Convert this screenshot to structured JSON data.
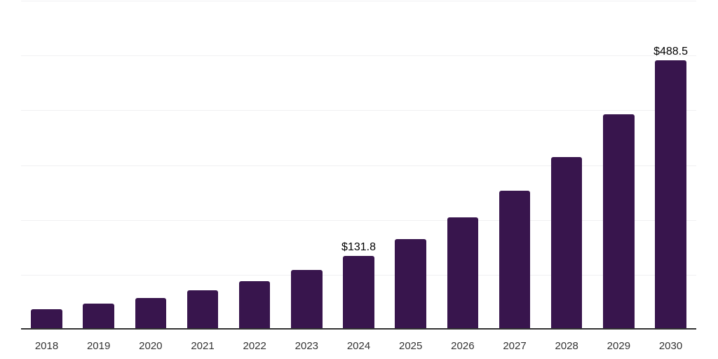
{
  "chart_data": {
    "type": "bar",
    "title": "",
    "xlabel": "",
    "ylabel": "",
    "categories": [
      "2018",
      "2019",
      "2020",
      "2021",
      "2022",
      "2023",
      "2024",
      "2025",
      "2026",
      "2027",
      "2028",
      "2029",
      "2030"
    ],
    "values": [
      34.9,
      45.1,
      55.4,
      68.7,
      85.3,
      105.8,
      131.8,
      162.8,
      201.7,
      250.6,
      312.4,
      390.0,
      488.5
    ],
    "data_labels": [
      {
        "category": "2024",
        "text": "$131.8"
      },
      {
        "category": "2030",
        "text": "$488.5"
      }
    ],
    "ylim": [
      0,
      600
    ],
    "gridline_step": 100,
    "grid": "horizontal-only",
    "legend": "none",
    "y_axis_tick_labels_visible": false,
    "colors": {
      "bar": "#38154d",
      "gridline": "#f0f0f2",
      "axis_line": "#333333",
      "x_tick_label": "#333333",
      "data_label": "#000000",
      "background": "#ffffff"
    }
  }
}
